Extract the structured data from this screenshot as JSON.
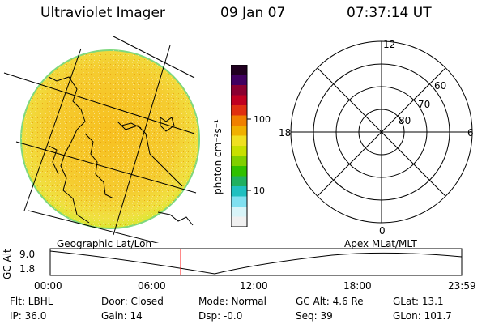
{
  "header": {
    "instrument": "Ultraviolet Imager",
    "date": "09 Jan 07",
    "time": "07:37:14 UT"
  },
  "colorbar": {
    "label": "photon cm⁻²s⁻¹",
    "ticks": [
      "100",
      "10"
    ],
    "colors": [
      "#200020",
      "#400060",
      "#8a0030",
      "#c00020",
      "#e03010",
      "#f08000",
      "#f0b000",
      "#f0e020",
      "#c8e000",
      "#80d000",
      "#30c000",
      "#20b060",
      "#20c0c0",
      "#80e0f0",
      "#d8f4f8",
      "#f0f0f0"
    ]
  },
  "polar_plot": {
    "mlt_labels": {
      "top": "12",
      "left": "18",
      "right": "6",
      "bottom": "0"
    },
    "lat_labels": [
      "60",
      "70",
      "80"
    ]
  },
  "timeline": {
    "left_label": "Geographic Lat/Lon",
    "right_label": "Apex MLat/MLT",
    "y_axis_title": "GC Alt",
    "y_ticks": [
      "9.0",
      "1.8"
    ],
    "x_ticks": [
      "00:00",
      "06:00",
      "12:00",
      "18:00",
      "23:59"
    ],
    "current_time_marker_fraction": 0.317,
    "marker_color": "#ff0000"
  },
  "status": {
    "flt": "Flt: LBHL",
    "ip": "IP: 36.0",
    "door": "Door: Closed",
    "gain": "Gain: 14",
    "mode": "Mode: Normal",
    "dsp": "Dsp:   -0.0",
    "gc_alt": "GC Alt: 4.6 Re",
    "seq": "Seq: 39",
    "glat": "GLat:   13.1",
    "glon": "GLon: 101.7"
  }
}
